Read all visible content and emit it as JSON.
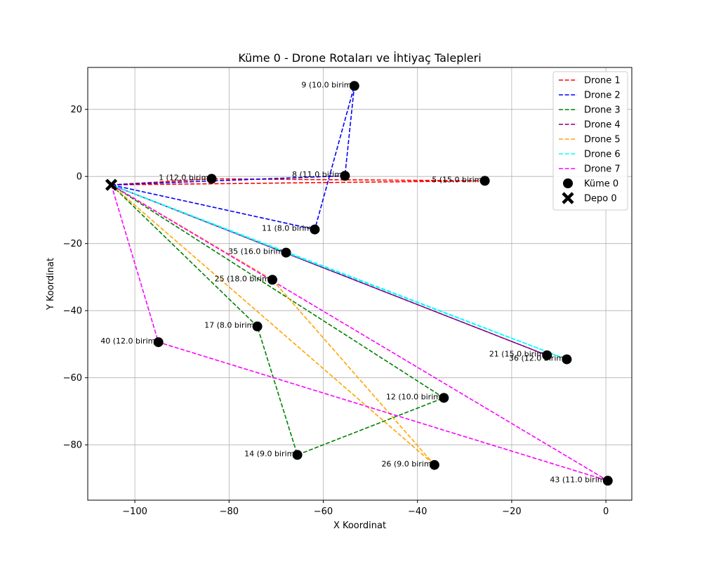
{
  "chart_data": {
    "type": "scatter",
    "title": "Küme 0 - Drone Rotaları ve İhtiyaç Talepleri",
    "xlabel": "X Koordinat",
    "ylabel": "Y Koordinat",
    "xlim": [
      -110,
      5.5
    ],
    "ylim": [
      -96.5,
      32.5
    ],
    "x_ticks": [
      -100,
      -80,
      -60,
      -40,
      -20,
      0
    ],
    "y_ticks": [
      -80,
      -60,
      -40,
      -20,
      0,
      20
    ],
    "grid": true,
    "legend_position": "top-right",
    "depot": {
      "name": "Depo 0",
      "x": -105,
      "y": -2.5,
      "color": "#000000"
    },
    "cluster": {
      "name": "Küme 0",
      "color": "#000000"
    },
    "points": [
      {
        "id": "1",
        "x": -83.7,
        "y": -0.7,
        "label": "1 (12.0 birim)"
      },
      {
        "id": "5",
        "x": -25.7,
        "y": -1.3,
        "label": "5 (15.0 birim)"
      },
      {
        "id": "8",
        "x": -55.4,
        "y": 0.2,
        "label": "8 (11.0 birim)"
      },
      {
        "id": "9",
        "x": -53.4,
        "y": 27.0,
        "label": "9 (10.0 birim)"
      },
      {
        "id": "11",
        "x": -61.8,
        "y": -15.8,
        "label": "11 (8.0 birim)"
      },
      {
        "id": "35",
        "x": -67.9,
        "y": -22.7,
        "label": "35 (16.0 birim)"
      },
      {
        "id": "25",
        "x": -70.8,
        "y": -30.8,
        "label": "25 (18.0 birim)"
      },
      {
        "id": "17",
        "x": -74.0,
        "y": -44.7,
        "label": "17 (8.0 birim)"
      },
      {
        "id": "40",
        "x": -95.0,
        "y": -49.4,
        "label": "40 (12.0 birim)"
      },
      {
        "id": "21",
        "x": -12.5,
        "y": -53.3,
        "label": "21 (15.0 birim)"
      },
      {
        "id": "36",
        "x": -8.3,
        "y": -54.5,
        "label": "36 (12.0 birim)"
      },
      {
        "id": "12",
        "x": -34.4,
        "y": -66.0,
        "label": "12 (10.0 birim)"
      },
      {
        "id": "14",
        "x": -65.5,
        "y": -83.0,
        "label": "14 (9.0 birim)"
      },
      {
        "id": "26",
        "x": -36.4,
        "y": -86.0,
        "label": "26 (9.0 birim)"
      },
      {
        "id": "43",
        "x": 0.4,
        "y": -90.7,
        "label": "43 (11.0 birim)"
      }
    ],
    "series": [
      {
        "name": "Drone 1",
        "color": "#ff0000",
        "route": [
          "1",
          "5"
        ]
      },
      {
        "name": "Drone 2",
        "color": "#0000ff",
        "route": [
          "8",
          "9",
          "11"
        ]
      },
      {
        "name": "Drone 3",
        "color": "#008000",
        "route": [
          "17",
          "14",
          "12"
        ]
      },
      {
        "name": "Drone 4",
        "color": "#800080",
        "route": [
          "21"
        ]
      },
      {
        "name": "Drone 5",
        "color": "#ffa500",
        "route": [
          "25",
          "26"
        ]
      },
      {
        "name": "Drone 6",
        "color": "#00ffff",
        "route": [
          "35",
          "36"
        ]
      },
      {
        "name": "Drone 7",
        "color": "#ff00ff",
        "route": [
          "40",
          "43"
        ]
      }
    ]
  }
}
